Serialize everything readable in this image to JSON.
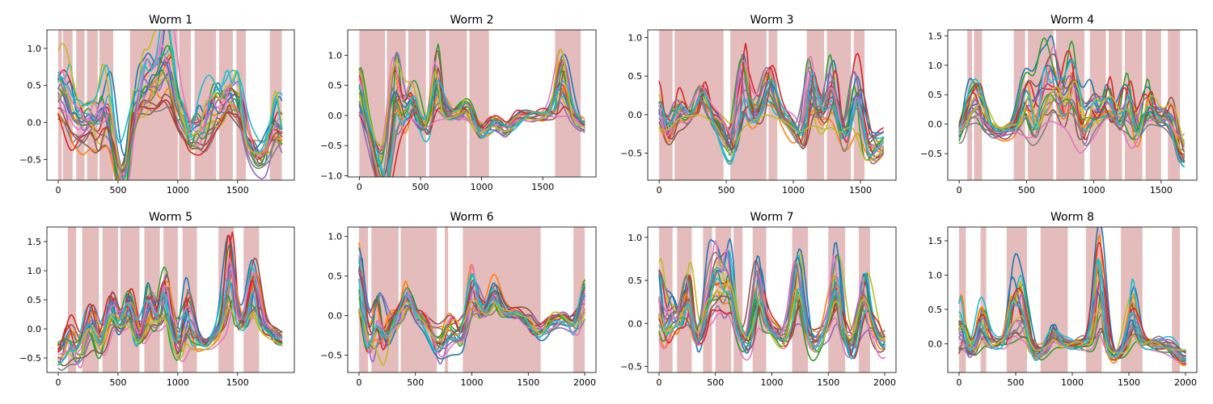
{
  "colors": {
    "shade": "#e4b8b8",
    "palette": [
      "#1f77b4",
      "#ff7f0e",
      "#2ca02c",
      "#d62728",
      "#9467bd",
      "#8c564b",
      "#e377c2",
      "#7f7f7f",
      "#bcbd22",
      "#17becf"
    ]
  },
  "chart_data": [
    {
      "type": "line",
      "title": "Worm 1",
      "n_traces": 20,
      "xlim": [
        -95,
        1975
      ],
      "ylim": [
        -0.78,
        1.25
      ],
      "xticks": [
        0,
        500,
        1000,
        1500
      ],
      "yticks": [
        -0.5,
        0.0,
        0.5,
        1.0
      ],
      "xtick_labels": [
        "0",
        "500",
        "1000",
        "1500"
      ],
      "ytick_labels": [
        "−0.5",
        "0.0",
        "0.5",
        "1.0"
      ],
      "x_max": 1870,
      "shaded_intervals": [
        [
          0,
          30
        ],
        [
          40,
          120
        ],
        [
          150,
          220
        ],
        [
          240,
          330
        ],
        [
          345,
          460
        ],
        [
          600,
          1000
        ],
        [
          1010,
          1110
        ],
        [
          1140,
          1320
        ],
        [
          1345,
          1460
        ],
        [
          1490,
          1570
        ],
        [
          1770,
          1870
        ]
      ],
      "peaks": [
        [
          0,
          0.85
        ],
        [
          80,
          0.8
        ],
        [
          160,
          0.4
        ],
        [
          280,
          0.5
        ],
        [
          380,
          0.6
        ],
        [
          430,
          0.55
        ],
        [
          640,
          0.75
        ],
        [
          720,
          0.7
        ],
        [
          800,
          0.85
        ],
        [
          880,
          1.0
        ],
        [
          940,
          1.15
        ],
        [
          1050,
          0.55
        ],
        [
          1150,
          0.45
        ],
        [
          1250,
          0.65
        ],
        [
          1320,
          0.5
        ],
        [
          1420,
          0.7
        ],
        [
          1510,
          0.65
        ],
        [
          1830,
          0.7
        ]
      ],
      "troughs": [
        [
          120,
          -0.5
        ],
        [
          330,
          -0.5
        ],
        [
          500,
          -0.55
        ],
        [
          560,
          -0.65
        ],
        [
          1100,
          -0.6
        ],
        [
          1250,
          -0.4
        ],
        [
          1600,
          -0.3
        ],
        [
          1700,
          -0.5
        ],
        [
          1850,
          -0.45
        ]
      ]
    },
    {
      "type": "line",
      "title": "Worm 2",
      "n_traces": 20,
      "xlim": [
        -95,
        1935
      ],
      "ylim": [
        -1.02,
        1.42
      ],
      "xticks": [
        0,
        500,
        1000,
        1500
      ],
      "yticks": [
        -1.0,
        -0.5,
        0.0,
        0.5,
        1.0
      ],
      "xtick_labels": [
        "0",
        "500",
        "1000",
        "1500"
      ],
      "ytick_labels": [
        "−1.0",
        "−0.5",
        "0.0",
        "0.5",
        "1.0"
      ],
      "x_max": 1840,
      "shaded_intervals": [
        [
          0,
          210
        ],
        [
          225,
          380
        ],
        [
          400,
          545
        ],
        [
          570,
          880
        ],
        [
          900,
          1060
        ],
        [
          1600,
          1810
        ]
      ],
      "peaks": [
        [
          0,
          0.85
        ],
        [
          290,
          1.3
        ],
        [
          440,
          0.55
        ],
        [
          630,
          1.2
        ],
        [
          880,
          0.3
        ],
        [
          1660,
          1.0
        ]
      ],
      "troughs": [
        [
          170,
          -0.85
        ],
        [
          230,
          -0.9
        ],
        [
          550,
          -0.5
        ],
        [
          1000,
          -0.35
        ],
        [
          1200,
          -0.3
        ],
        [
          1850,
          -0.25
        ]
      ]
    },
    {
      "type": "line",
      "title": "Worm 3",
      "n_traces": 20,
      "xlim": [
        -85,
        1765
      ],
      "ylim": [
        -0.85,
        1.1
      ],
      "xticks": [
        0,
        500,
        1000,
        1500
      ],
      "yticks": [
        -0.5,
        0.0,
        0.5,
        1.0
      ],
      "xtick_labels": [
        "0",
        "500",
        "1000",
        "1500"
      ],
      "ytick_labels": [
        "−0.5",
        "0.0",
        "0.5",
        "1.0"
      ],
      "x_max": 1670,
      "shaded_intervals": [
        [
          0,
          100
        ],
        [
          115,
          480
        ],
        [
          530,
          800
        ],
        [
          815,
          880
        ],
        [
          1100,
          1230
        ],
        [
          1250,
          1430
        ],
        [
          1450,
          1530
        ]
      ],
      "peaks": [
        [
          0,
          0.5
        ],
        [
          140,
          0.3
        ],
        [
          320,
          0.4
        ],
        [
          620,
          1.0
        ],
        [
          820,
          0.55
        ],
        [
          1130,
          0.8
        ],
        [
          1300,
          0.8
        ],
        [
          1480,
          0.8
        ]
      ],
      "troughs": [
        [
          60,
          -0.45
        ],
        [
          560,
          -0.7
        ],
        [
          1080,
          -0.6
        ],
        [
          1360,
          -0.55
        ],
        [
          1550,
          -0.5
        ],
        [
          1660,
          -0.4
        ]
      ]
    },
    {
      "type": "line",
      "title": "Worm 4",
      "n_traces": 20,
      "xlim": [
        -85,
        1765
      ],
      "ylim": [
        -0.95,
        1.6
      ],
      "xticks": [
        0,
        500,
        1000,
        1500
      ],
      "yticks": [
        -0.5,
        0.0,
        0.5,
        1.0,
        1.5
      ],
      "xtick_labels": [
        "0",
        "500",
        "1000",
        "1500"
      ],
      "ytick_labels": [
        "−0.5",
        "0.0",
        "0.5",
        "1.0",
        "1.5"
      ],
      "x_max": 1670,
      "shaded_intervals": [
        [
          60,
          95
        ],
        [
          110,
          170
        ],
        [
          405,
          490
        ],
        [
          510,
          700
        ],
        [
          720,
          930
        ],
        [
          970,
          1090
        ],
        [
          1110,
          1210
        ],
        [
          1230,
          1360
        ],
        [
          1385,
          1500
        ],
        [
          1550,
          1640
        ]
      ],
      "peaks": [
        [
          70,
          0.5
        ],
        [
          140,
          0.6
        ],
        [
          500,
          1.0
        ],
        [
          620,
          1.2
        ],
        [
          700,
          1.0
        ],
        [
          840,
          1.5
        ],
        [
          980,
          0.75
        ],
        [
          1100,
          0.65
        ],
        [
          1250,
          0.9
        ],
        [
          1400,
          0.7
        ],
        [
          1560,
          0.5
        ]
      ],
      "troughs": [
        [
          0,
          -0.3
        ],
        [
          300,
          -0.25
        ],
        [
          560,
          -0.5
        ],
        [
          920,
          -0.6
        ],
        [
          1300,
          -0.5
        ],
        [
          1660,
          -0.8
        ]
      ]
    },
    {
      "type": "line",
      "title": "Worm 5",
      "n_traces": 20,
      "xlim": [
        -95,
        1975
      ],
      "ylim": [
        -0.75,
        1.75
      ],
      "xticks": [
        0,
        500,
        1000,
        1500
      ],
      "yticks": [
        -0.5,
        0.0,
        0.5,
        1.0,
        1.5
      ],
      "xtick_labels": [
        "0",
        "500",
        "1000",
        "1500"
      ],
      "ytick_labels": [
        "−0.5",
        "0.0",
        "0.5",
        "1.0",
        "1.5"
      ],
      "x_max": 1870,
      "shaded_intervals": [
        [
          80,
          150
        ],
        [
          200,
          340
        ],
        [
          370,
          500
        ],
        [
          520,
          680
        ],
        [
          720,
          850
        ],
        [
          880,
          1000
        ],
        [
          1040,
          1160
        ],
        [
          1340,
          1470
        ],
        [
          1550,
          1680
        ]
      ],
      "peaks": [
        [
          100,
          0.4
        ],
        [
          280,
          0.6
        ],
        [
          440,
          0.8
        ],
        [
          600,
          0.85
        ],
        [
          760,
          0.95
        ],
        [
          900,
          1.0
        ],
        [
          1080,
          1.05
        ],
        [
          1440,
          1.6
        ],
        [
          1640,
          1.2
        ]
      ],
      "troughs": [
        [
          0,
          -0.6
        ],
        [
          160,
          -0.55
        ],
        [
          360,
          -0.5
        ],
        [
          700,
          -0.45
        ],
        [
          1040,
          -0.55
        ],
        [
          1240,
          -0.35
        ],
        [
          1870,
          -0.3
        ]
      ]
    },
    {
      "type": "line",
      "title": "Worm 6",
      "n_traces": 20,
      "xlim": [
        -100,
        2100
      ],
      "ylim": [
        -0.72,
        1.12
      ],
      "xticks": [
        0,
        500,
        1000,
        1500,
        2000
      ],
      "yticks": [
        -0.5,
        0.0,
        0.5,
        1.0
      ],
      "xtick_labels": [
        "0",
        "500",
        "1000",
        "1500",
        "2000"
      ],
      "ytick_labels": [
        "−0.5",
        "0.0",
        "0.5",
        "1.0"
      ],
      "x_max": 2000,
      "shaded_intervals": [
        [
          0,
          80
        ],
        [
          110,
          350
        ],
        [
          370,
          690
        ],
        [
          760,
          790
        ],
        [
          920,
          1610
        ],
        [
          1900,
          2000
        ]
      ],
      "peaks": [
        [
          0,
          1.05
        ],
        [
          160,
          0.8
        ],
        [
          420,
          0.35
        ],
        [
          1000,
          0.7
        ],
        [
          1200,
          0.4
        ],
        [
          2000,
          0.45
        ]
      ],
      "troughs": [
        [
          100,
          -0.6
        ],
        [
          200,
          -0.5
        ],
        [
          700,
          -0.5
        ],
        [
          900,
          -0.45
        ],
        [
          1600,
          -0.3
        ],
        [
          1900,
          -0.2
        ]
      ]
    },
    {
      "type": "line",
      "title": "Worm 7",
      "n_traces": 20,
      "xlim": [
        -100,
        2100
      ],
      "ylim": [
        -0.57,
        1.12
      ],
      "xticks": [
        0,
        500,
        1000,
        1500,
        2000
      ],
      "yticks": [
        -0.5,
        0.0,
        0.5,
        1.0
      ],
      "xtick_labels": [
        "0",
        "500",
        "1000",
        "1500",
        "2000"
      ],
      "ytick_labels": [
        "−0.5",
        "0.0",
        "0.5",
        "1.0"
      ],
      "x_max": 2000,
      "shaded_intervals": [
        [
          0,
          120
        ],
        [
          160,
          290
        ],
        [
          390,
          470
        ],
        [
          500,
          640
        ],
        [
          660,
          740
        ],
        [
          830,
          950
        ],
        [
          1180,
          1320
        ],
        [
          1500,
          1650
        ],
        [
          1770,
          1870
        ]
      ],
      "peaks": [
        [
          0,
          1.05
        ],
        [
          100,
          0.4
        ],
        [
          260,
          0.85
        ],
        [
          440,
          0.6
        ],
        [
          520,
          0.8
        ],
        [
          620,
          0.8
        ],
        [
          880,
          0.8
        ],
        [
          1230,
          0.9
        ],
        [
          1570,
          0.9
        ],
        [
          1820,
          0.7
        ]
      ],
      "troughs": [
        [
          40,
          -0.5
        ],
        [
          340,
          -0.4
        ],
        [
          780,
          -0.35
        ],
        [
          1100,
          -0.3
        ],
        [
          1380,
          -0.35
        ],
        [
          1700,
          -0.4
        ],
        [
          1990,
          -0.3
        ]
      ]
    },
    {
      "type": "line",
      "title": "Worm 8",
      "n_traces": 20,
      "xlim": [
        -100,
        2100
      ],
      "ylim": [
        -0.42,
        1.7
      ],
      "xticks": [
        0,
        500,
        1000,
        1500,
        2000
      ],
      "yticks": [
        0.0,
        0.5,
        1.0,
        1.5
      ],
      "xtick_labels": [
        "0",
        "500",
        "1000",
        "1500",
        "2000"
      ],
      "ytick_labels": [
        "0.0",
        "0.5",
        "1.0",
        "1.5"
      ],
      "x_max": 2000,
      "shaded_intervals": [
        [
          0,
          60
        ],
        [
          190,
          240
        ],
        [
          420,
          600
        ],
        [
          720,
          960
        ],
        [
          1120,
          1260
        ],
        [
          1430,
          1620
        ],
        [
          1880,
          1950
        ]
      ],
      "peaks": [
        [
          20,
          0.8
        ],
        [
          200,
          0.65
        ],
        [
          480,
          0.9
        ],
        [
          560,
          0.8
        ],
        [
          840,
          0.3
        ],
        [
          1240,
          1.6
        ],
        [
          1540,
          0.8
        ]
      ],
      "troughs": [
        [
          0,
          -0.25
        ],
        [
          120,
          -0.2
        ],
        [
          700,
          -0.2
        ],
        [
          1380,
          -0.25
        ],
        [
          2000,
          -0.3
        ]
      ]
    }
  ]
}
